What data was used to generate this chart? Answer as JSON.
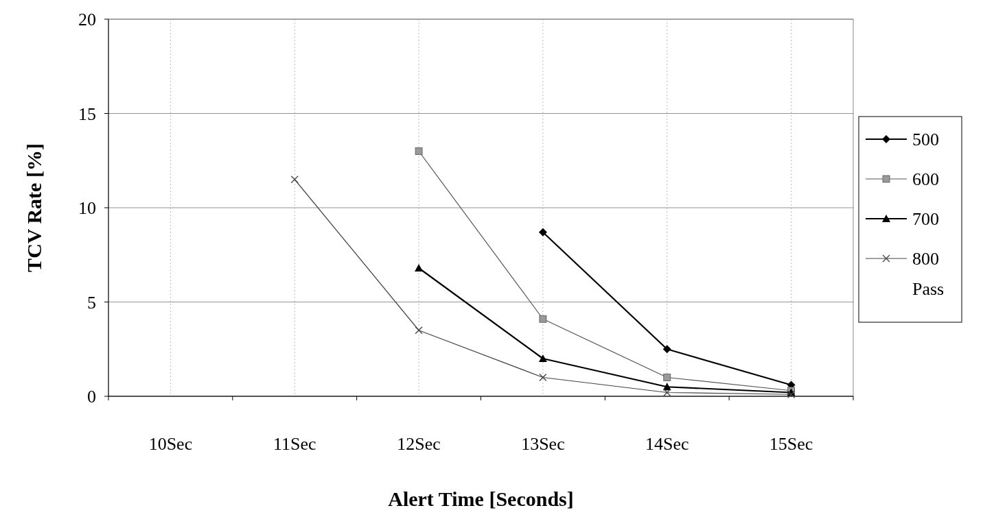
{
  "chart_data": {
    "type": "line",
    "xlabel": "Alert Time [Seconds]",
    "ylabel": "TCV Rate [%]",
    "categories": [
      "10Sec",
      "11Sec",
      "12Sec",
      "13Sec",
      "14Sec",
      "15Sec"
    ],
    "ylim": [
      0,
      20
    ],
    "yticks": [
      0,
      5,
      10,
      15,
      20
    ],
    "grid": true,
    "legend": "right",
    "series": [
      {
        "name": "500",
        "color": "#000000",
        "marker": "diamond",
        "values": [
          null,
          null,
          null,
          8.7,
          2.5,
          0.6
        ]
      },
      {
        "name": "600",
        "color": "#555555",
        "marker": "square",
        "values": [
          null,
          null,
          13.0,
          4.1,
          1.0,
          0.3
        ]
      },
      {
        "name": "700",
        "color": "#000000",
        "marker": "triangle",
        "values": [
          null,
          null,
          6.8,
          2.0,
          0.5,
          0.2
        ]
      },
      {
        "name": "800 Pass",
        "color": "#444444",
        "marker": "cross",
        "values": [
          null,
          11.5,
          3.5,
          1.0,
          0.2,
          0.1
        ]
      }
    ]
  }
}
